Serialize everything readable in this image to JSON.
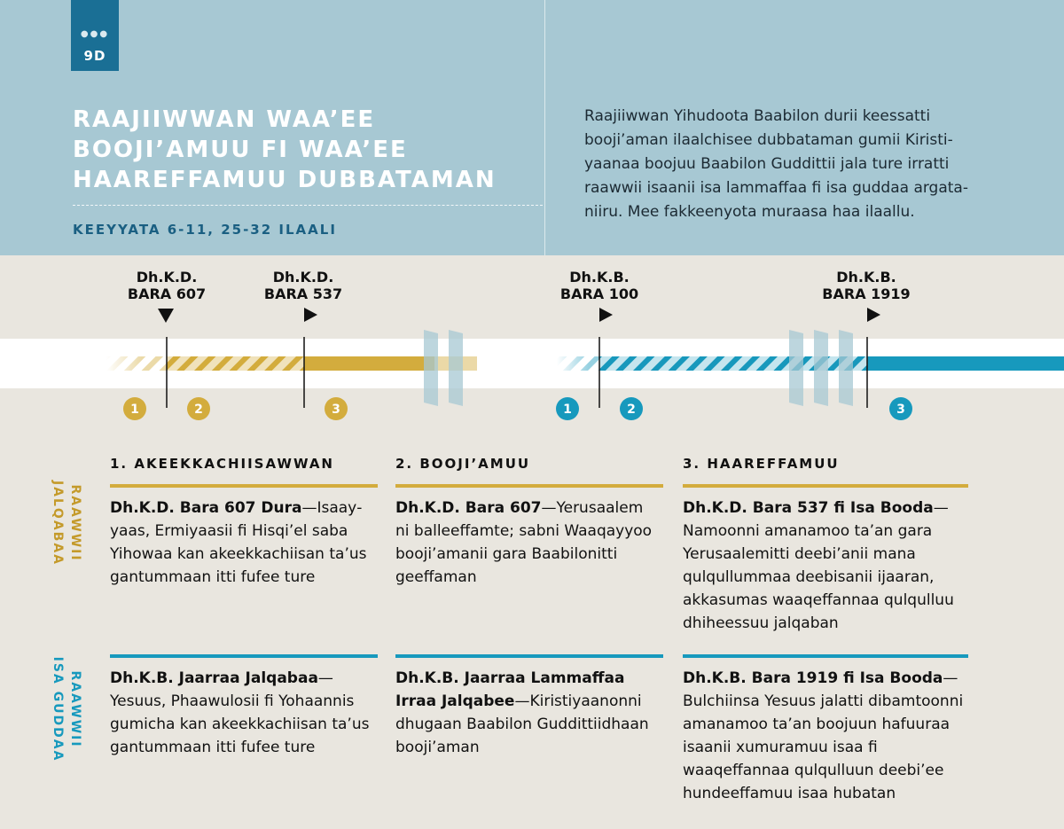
{
  "header": {
    "tab_number": "9D",
    "title": "RAAJIIWWAN WAA’EE BOOJI’AMUU FI WAA’EE HAAREFFAMUU DUBBATAMAN",
    "subtitle": "KEEYYATA 6-11, 25-32 ILAALI",
    "intro": "Raajiiwwan Yihudoota Baabilon durii keessatti booji’aman ilaalchisee dubbataman gumii Kiristi­yaanaa boojuu Baabilon Guddittii jala ture irratti raawwii isaanii isa lammaffaa fi isa guddaa argata­niiru. Mee fakkeenyota muraasa haa ilaallu."
  },
  "timeline": {
    "markers": [
      {
        "line1": "Dh.K.D.",
        "line2": "BARA 607"
      },
      {
        "line1": "Dh.K.D.",
        "line2": "BARA 537"
      },
      {
        "line1": "Dh.K.B.",
        "line2": "BARA 100"
      },
      {
        "line1": "Dh.K.B.",
        "line2": "BARA 1919"
      }
    ],
    "badges": [
      "1",
      "2",
      "3",
      "1",
      "2",
      "3"
    ],
    "colors": {
      "gold": "#d3ac3d",
      "blue": "#1799bd"
    }
  },
  "columns": [
    {
      "heading": "1. AKEEKKACHIISAWWAN"
    },
    {
      "heading": "2. BOOJI’AMUU"
    },
    {
      "heading": "3. HAAREFFAMUU"
    }
  ],
  "rows": {
    "first": {
      "label_line1": "RAAWWII",
      "label_line2": "JALQABAA",
      "cells": [
        {
          "bold": "Dh.K.D. Bara 607 Dura",
          "text": "—Isaay­yaas, Ermiyaasii fi Hisqi’el saba Yihowaa kan akeekkachiisan ta’us gantummaan itti fufee ture"
        },
        {
          "bold": "Dh.K.D. Bara 607",
          "text": "—Yerusaalem ni balleeffamte; sabni Waaqay­yoo booji’amanii gara Baabilo­nitti geeffaman"
        },
        {
          "bold": "Dh.K.D. Bara 537 fi Isa Booda",
          "text": "—Namoonni amanamoo ta’an gara Yerusaalemitti deebi’anii mana qulqullummaa deebisanii ijaaran, akkasumas waaqeffannaa qulqulluu dhiheessuu jalqaban"
        }
      ]
    },
    "second": {
      "label_line1": "RAAWWII",
      "label_line2": "ISA GUDDAA",
      "cells": [
        {
          "bold": "Dh.K.B. Jaarraa Jalqabaa",
          "text": "—Yesuus, Phaawulosii fi Yohaan­nis gumicha kan akeekkachiisan ta’us gantummaan itti fufee ture"
        },
        {
          "bold": "Dh.K.B. Jaarraa Lammaffaa Irraa Jalqabee",
          "text": "—Kiristiyaanonni dhugaan Baabilon Guddittii­dhaan booji’aman"
        },
        {
          "bold": "Dh.K.B. Bara 1919 fi Isa Booda",
          "text": "—Bulchiinsa Yesuus jalatti dibam­toonni amanamoo ta’an boojuun hafuuraa isaanii xumuramuu isaa fi waaqeffannaa qulqulluun deebi’ee hundeeffamuu isaa hubatan"
        }
      ]
    }
  }
}
